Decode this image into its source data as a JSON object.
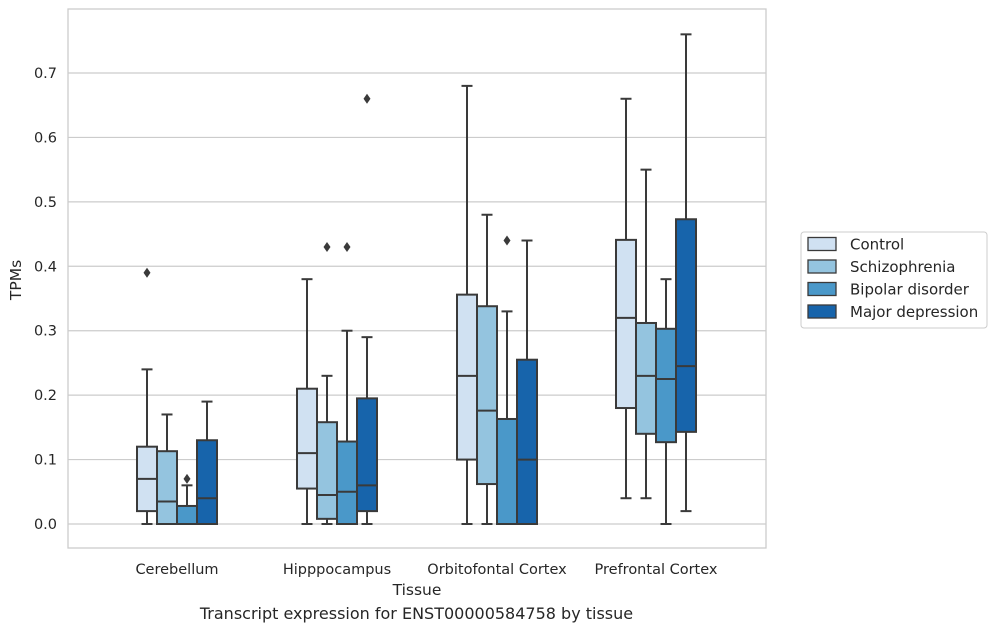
{
  "caption": "Transcript expression for ENST00000584758 by tissue",
  "chart_data": {
    "type": "box",
    "xlabel": "Tissue",
    "ylabel": "TPMs",
    "ylim": [
      -0.037,
      0.8
    ],
    "yticks": [
      0.0,
      0.1,
      0.2,
      0.3,
      0.4,
      0.5,
      0.6,
      0.7
    ],
    "ytick_labels": [
      "0.0",
      "0.1",
      "0.2",
      "0.3",
      "0.4",
      "0.5",
      "0.6",
      "0.7"
    ],
    "grid": "horizontal",
    "legend_placement": "right",
    "categories": [
      "Cerebellum",
      "Hipppocampus",
      "Orbitofontal Cortex",
      "Prefrontal Cortex"
    ],
    "series": [
      {
        "name": "Control",
        "color": "#d0e1f2",
        "boxes": [
          {
            "whislo": 0.0,
            "q1": 0.02,
            "med": 0.07,
            "q3": 0.12,
            "whishi": 0.24,
            "fliers": [
              0.39
            ]
          },
          {
            "whislo": 0.0,
            "q1": 0.055,
            "med": 0.11,
            "q3": 0.21,
            "whishi": 0.38,
            "fliers": []
          },
          {
            "whislo": 0.0,
            "q1": 0.1,
            "med": 0.23,
            "q3": 0.356,
            "whishi": 0.68,
            "fliers": []
          },
          {
            "whislo": 0.04,
            "q1": 0.18,
            "med": 0.32,
            "q3": 0.441,
            "whishi": 0.66,
            "fliers": []
          }
        ]
      },
      {
        "name": "Schizophrenia",
        "color": "#94c4df",
        "boxes": [
          {
            "whislo": 0.0,
            "q1": 0.0,
            "med": 0.035,
            "q3": 0.113,
            "whishi": 0.17,
            "fliers": []
          },
          {
            "whislo": 0.0,
            "q1": 0.008,
            "med": 0.045,
            "q3": 0.158,
            "whishi": 0.23,
            "fliers": [
              0.43
            ]
          },
          {
            "whislo": 0.0,
            "q1": 0.062,
            "med": 0.176,
            "q3": 0.338,
            "whishi": 0.48,
            "fliers": []
          },
          {
            "whislo": 0.04,
            "q1": 0.14,
            "med": 0.23,
            "q3": 0.312,
            "whishi": 0.55,
            "fliers": []
          }
        ]
      },
      {
        "name": "Bipolar disorder",
        "color": "#4a98c9",
        "boxes": [
          {
            "whislo": 0.0,
            "q1": 0.0,
            "med": 0.0,
            "q3": 0.028,
            "whishi": 0.06,
            "fliers": [
              0.07
            ]
          },
          {
            "whislo": 0.0,
            "q1": 0.0,
            "med": 0.05,
            "q3": 0.128,
            "whishi": 0.3,
            "fliers": [
              0.43
            ]
          },
          {
            "whislo": 0.0,
            "q1": 0.0,
            "med": 0.0,
            "q3": 0.163,
            "whishi": 0.33,
            "fliers": [
              0.44
            ]
          },
          {
            "whislo": 0.0,
            "q1": 0.127,
            "med": 0.225,
            "q3": 0.303,
            "whishi": 0.38,
            "fliers": []
          }
        ]
      },
      {
        "name": "Major depression",
        "color": "#1764ab",
        "boxes": [
          {
            "whislo": 0.0,
            "q1": 0.0,
            "med": 0.04,
            "q3": 0.13,
            "whishi": 0.19,
            "fliers": []
          },
          {
            "whislo": 0.0,
            "q1": 0.02,
            "med": 0.06,
            "q3": 0.195,
            "whishi": 0.29,
            "fliers": [
              0.66
            ]
          },
          {
            "whislo": 0.0,
            "q1": 0.0,
            "med": 0.1,
            "q3": 0.255,
            "whishi": 0.44,
            "fliers": []
          },
          {
            "whislo": 0.02,
            "q1": 0.143,
            "med": 0.245,
            "q3": 0.473,
            "whishi": 0.76,
            "fliers": []
          }
        ]
      }
    ]
  }
}
